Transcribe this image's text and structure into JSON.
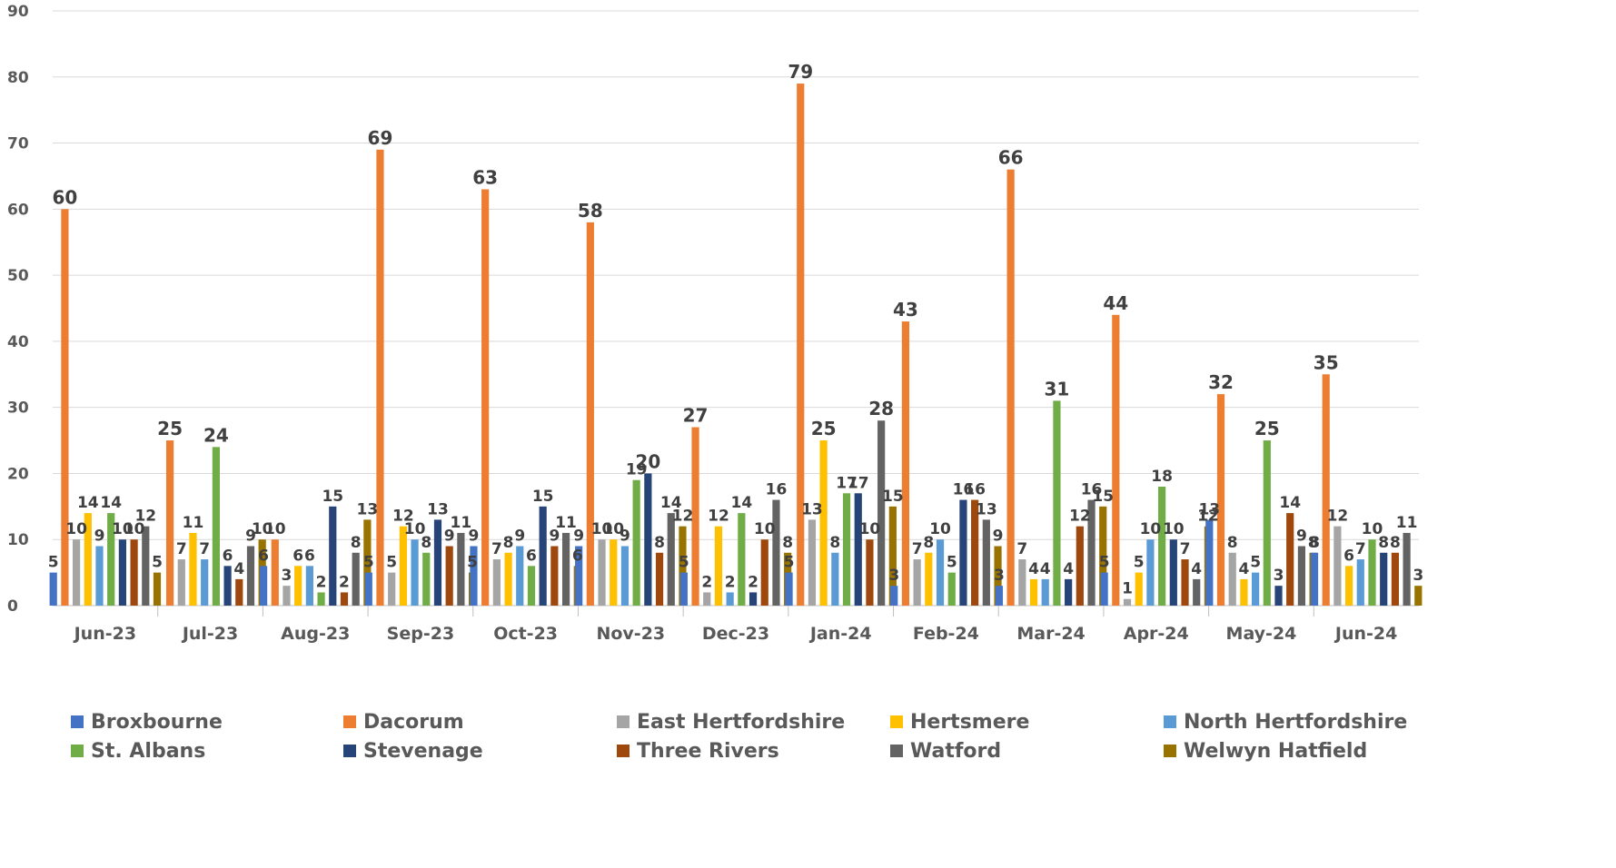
{
  "chart_data": {
    "type": "bar",
    "title": "",
    "xlabel": "",
    "ylabel": "",
    "ylim": [
      0,
      90
    ],
    "yticks": [
      0,
      10,
      20,
      30,
      40,
      50,
      60,
      70,
      80,
      90
    ],
    "grid": true,
    "legend_position": "bottom",
    "categories": [
      "Jun-23",
      "Jul-23",
      "Aug-23",
      "Sep-23",
      "Oct-23",
      "Nov-23",
      "Dec-23",
      "Jan-24",
      "Feb-24",
      "Mar-24",
      "Apr-24",
      "May-24",
      "Jun-24"
    ],
    "series": [
      {
        "name": "Broxbourne",
        "color": "#4472C4",
        "values": [
          5,
          0,
          6,
          5,
          9,
          9,
          5,
          5,
          3,
          3,
          5,
          13,
          8
        ]
      },
      {
        "name": "Dacorum",
        "color": "#ED7D31",
        "values": [
          60,
          25,
          10,
          69,
          63,
          58,
          27,
          79,
          43,
          66,
          44,
          32,
          35
        ]
      },
      {
        "name": "East Hertfordshire",
        "color": "#A5A5A5",
        "values": [
          10,
          7,
          3,
          5,
          7,
          10,
          2,
          13,
          7,
          7,
          1,
          8,
          12
        ]
      },
      {
        "name": "Hertsmere",
        "color": "#FFC000",
        "values": [
          14,
          11,
          6,
          12,
          8,
          10,
          12,
          25,
          8,
          4,
          5,
          4,
          6
        ]
      },
      {
        "name": "North Hertfordshire",
        "color": "#5B9BD5",
        "values": [
          9,
          7,
          6,
          10,
          9,
          9,
          2,
          8,
          10,
          4,
          10,
          5,
          7
        ]
      },
      {
        "name": "St. Albans",
        "color": "#70AD47",
        "values": [
          14,
          24,
          2,
          8,
          6,
          19,
          14,
          17,
          5,
          31,
          18,
          25,
          10
        ]
      },
      {
        "name": "Stevenage",
        "color": "#264478",
        "values": [
          10,
          6,
          15,
          13,
          15,
          20,
          2,
          17,
          16,
          4,
          10,
          3,
          8
        ]
      },
      {
        "name": "Three Rivers",
        "color": "#9E480E",
        "values": [
          10,
          4,
          2,
          9,
          9,
          8,
          10,
          10,
          16,
          12,
          7,
          14,
          8
        ]
      },
      {
        "name": "Watford",
        "color": "#636363",
        "values": [
          12,
          9,
          8,
          11,
          11,
          14,
          16,
          28,
          13,
          16,
          4,
          9,
          11
        ]
      },
      {
        "name": "Welwyn Hatfield",
        "color": "#997300",
        "values": [
          5,
          10,
          13,
          5,
          6,
          12,
          8,
          15,
          9,
          15,
          12,
          8,
          3
        ]
      }
    ]
  }
}
